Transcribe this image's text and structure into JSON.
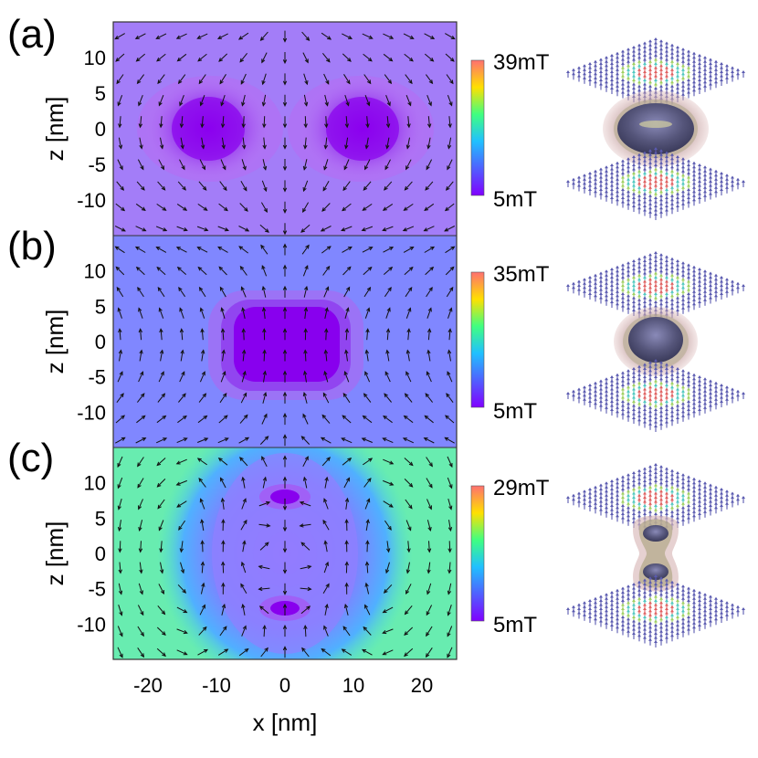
{
  "figure": {
    "panels": [
      {
        "label": "(a)",
        "colorbar_max": "39mT",
        "colorbar_min": "5mT",
        "ylabel": "z [nm]"
      },
      {
        "label": "(b)",
        "colorbar_max": "35mT",
        "colorbar_min": "5mT",
        "ylabel": "z [nm]"
      },
      {
        "label": "(c)",
        "colorbar_max": "29mT",
        "colorbar_min": "5mT",
        "ylabel": "z [nm]"
      }
    ],
    "xlabel": "x [nm]",
    "x_ticks": [
      "-20",
      "-10",
      "0",
      "10",
      "20"
    ],
    "y_ticks": [
      "10",
      "5",
      "0",
      "-5",
      "-10"
    ]
  },
  "chart_data": [
    {
      "type": "heatmap",
      "panel": "(a)",
      "xlabel": "x [nm]",
      "ylabel": "z [nm]",
      "xlim": [
        -25,
        25
      ],
      "ylim": [
        -15,
        15
      ],
      "colorbar_range_mT": [
        5,
        39
      ],
      "x_ticks": [
        -20,
        -10,
        0,
        10,
        20
      ],
      "y_ticks": [
        -10,
        -5,
        0,
        5,
        10
      ],
      "low_field_centers_nm": [
        [
          -12,
          0
        ],
        [
          12,
          0
        ]
      ],
      "high_field_centers_nm": [
        [
          0,
          14
        ],
        [
          0,
          -14
        ]
      ]
    },
    {
      "type": "heatmap",
      "panel": "(b)",
      "xlabel": "x [nm]",
      "ylabel": "z [nm]",
      "xlim": [
        -25,
        25
      ],
      "ylim": [
        -15,
        15
      ],
      "colorbar_range_mT": [
        5,
        35
      ],
      "x_ticks": [
        -20,
        -10,
        0,
        10,
        20
      ],
      "y_ticks": [
        -10,
        -5,
        0,
        5,
        10
      ],
      "low_field_centers_nm": [
        [
          0,
          0
        ]
      ],
      "high_field_centers_nm": [
        [
          0,
          14
        ],
        [
          0,
          -14
        ]
      ]
    },
    {
      "type": "heatmap",
      "panel": "(c)",
      "xlabel": "x [nm]",
      "ylabel": "z [nm]",
      "xlim": [
        -25,
        25
      ],
      "ylim": [
        -15,
        15
      ],
      "colorbar_range_mT": [
        5,
        29
      ],
      "x_ticks": [
        -20,
        -10,
        0,
        10,
        20
      ],
      "y_ticks": [
        -10,
        -5,
        0,
        5,
        10
      ],
      "low_field_centers_nm": [
        [
          0,
          8
        ],
        [
          0,
          -8
        ]
      ],
      "high_field_centers_nm": [
        [
          0,
          14
        ],
        [
          0,
          -14
        ]
      ]
    }
  ]
}
